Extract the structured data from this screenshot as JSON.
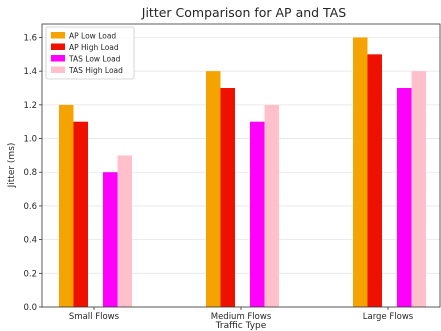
{
  "chart_data": {
    "type": "bar",
    "title": "Jitter Comparison for AP and TAS",
    "xlabel": "Traffic Type",
    "ylabel": "Jitter (ms)",
    "categories": [
      "Small Flows",
      "Medium Flows",
      "Large Flows"
    ],
    "series": [
      {
        "name": "AP Low Load",
        "color": "#f5a300",
        "values": [
          1.2,
          1.4,
          1.6
        ]
      },
      {
        "name": "AP High Load",
        "color": "#ee1100",
        "values": [
          1.1,
          1.3,
          1.5
        ]
      },
      {
        "name": "TAS Low Load",
        "color": "#ff00ff",
        "values": [
          0.8,
          1.1,
          1.3
        ]
      },
      {
        "name": "TAS High Load",
        "color": "#ffc0cb",
        "values": [
          0.9,
          1.2,
          1.4
        ]
      }
    ],
    "ylim": [
      0,
      1.68
    ],
    "yticks": [
      "0.0",
      "0.2",
      "0.4",
      "0.6",
      "0.8",
      "1.0",
      "1.2",
      "1.4",
      "1.6"
    ],
    "grid": true,
    "legend_position": "top-left"
  }
}
